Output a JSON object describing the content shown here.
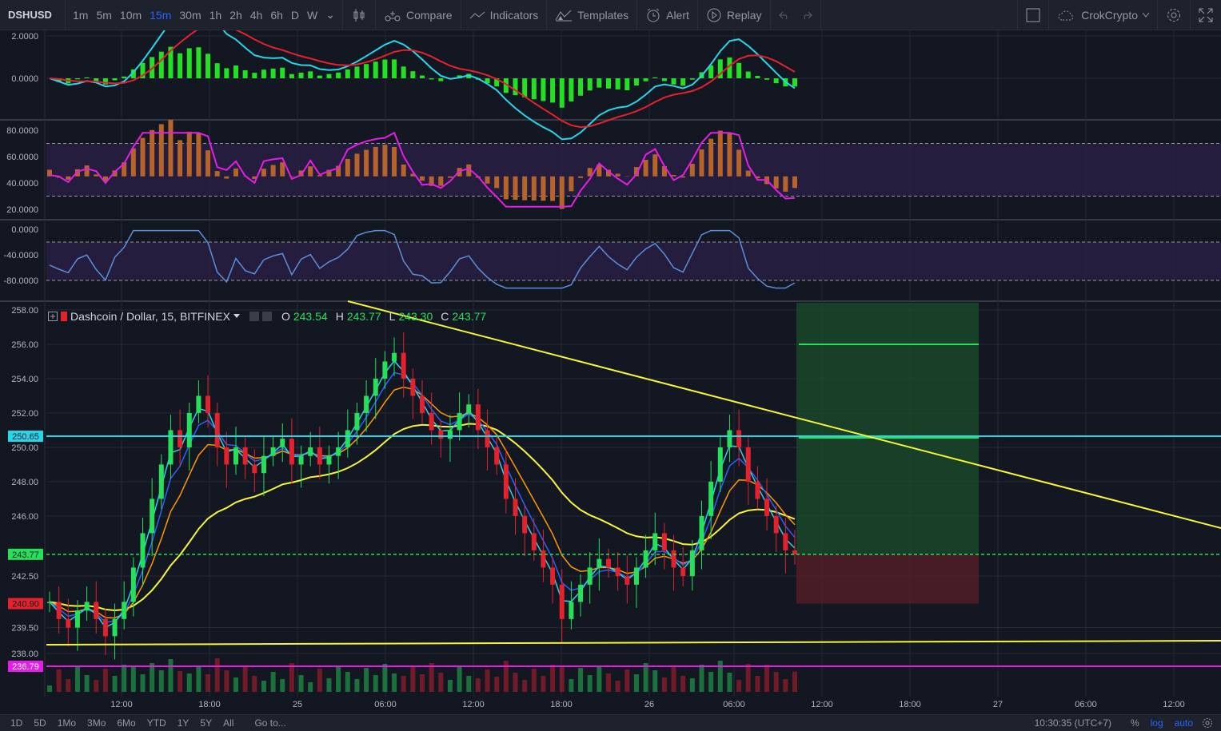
{
  "symbol": "DSHUSD",
  "timeframes": [
    {
      "label": "1m",
      "active": false
    },
    {
      "label": "5m",
      "active": false
    },
    {
      "label": "10m",
      "active": false
    },
    {
      "label": "15m",
      "active": true
    },
    {
      "label": "30m",
      "active": false
    },
    {
      "label": "1h",
      "active": false
    },
    {
      "label": "2h",
      "active": false
    },
    {
      "label": "4h",
      "active": false
    },
    {
      "label": "6h",
      "active": false
    },
    {
      "label": "D",
      "active": false
    },
    {
      "label": "W",
      "active": false
    }
  ],
  "toolbar": {
    "compare": "Compare",
    "indicators": "Indicators",
    "templates": "Templates",
    "alert": "Alert",
    "replay": "Replay",
    "account": "CrokCrypto"
  },
  "legend": {
    "title": "Dashcoin / Dollar, 15, BITFINEX",
    "o_label": "O",
    "o": "243.54",
    "h_label": "H",
    "h": "243.77",
    "l_label": "L",
    "l": "243.30",
    "c_label": "C",
    "c": "243.77"
  },
  "colors": {
    "accent": "#2962ff",
    "up": "#26e05a",
    "down": "#e3222e",
    "yellow": "#f5f53a",
    "cyan": "#27d6e8",
    "magenta": "#e31fe3"
  },
  "macd_axis": [
    "2.0000",
    "0.0000"
  ],
  "rsi_axis": [
    "80.0000",
    "60.0000",
    "40.0000",
    "20.0000"
  ],
  "wr_axis": [
    "0.0000",
    "-40.0000",
    "-80.0000"
  ],
  "price_axis": [
    "258.00",
    "256.00",
    "254.00",
    "252.00",
    "250.00",
    "248.00",
    "246.00",
    "242.50",
    "239.50",
    "238.00"
  ],
  "price_tags": [
    {
      "value": "250.65",
      "color": "#27d6e8"
    },
    {
      "value": "243.77",
      "color": "#26e05a"
    },
    {
      "value": "240.90",
      "color": "#e3222e"
    },
    {
      "value": "236.79",
      "color": "#e31fe3"
    }
  ],
  "time_axis": [
    "12:00",
    "18:00",
    "25",
    "06:00",
    "12:00",
    "18:00",
    "26",
    "06:00",
    "12:00",
    "18:00",
    "27",
    "06:00",
    "12:00"
  ],
  "bottom": {
    "ranges": [
      "1D",
      "5D",
      "1Mo",
      "3Mo",
      "6Mo",
      "YTD",
      "1Y",
      "5Y",
      "All"
    ],
    "goto": "Go to...",
    "clock": "10:30:35 (UTC+7)",
    "pct": "%",
    "log": "log",
    "auto": "auto"
  },
  "chart_data": {
    "type": "candlestick",
    "title": "Dashcoin / Dollar, 15, BITFINEX",
    "ylim": [
      236,
      259
    ],
    "horizontal_levels": [
      250.65,
      243.77,
      240.9,
      236.79,
      238.0
    ],
    "position_tool": {
      "entry": 243.77,
      "target": 256.0,
      "stop": 240.9
    },
    "close_series": [
      241,
      240,
      239.5,
      240.5,
      241,
      240,
      239,
      240,
      241,
      243,
      245,
      247,
      249,
      251,
      250,
      252,
      253,
      252,
      250,
      249,
      250,
      249,
      248.5,
      249.5,
      250,
      250.5,
      249,
      249.5,
      250,
      249,
      249.5,
      250,
      251,
      252,
      253,
      254,
      255,
      255.5,
      254,
      253,
      252,
      251,
      250.5,
      251,
      252,
      252.5,
      251,
      250,
      249,
      247,
      246,
      245,
      244,
      243,
      242,
      240,
      241,
      242,
      243,
      243.5,
      243,
      242.5,
      242,
      243,
      244,
      245,
      244,
      243,
      242.5,
      244,
      246,
      248,
      250,
      251,
      250,
      248,
      247,
      246,
      245,
      244,
      243.77
    ]
  }
}
